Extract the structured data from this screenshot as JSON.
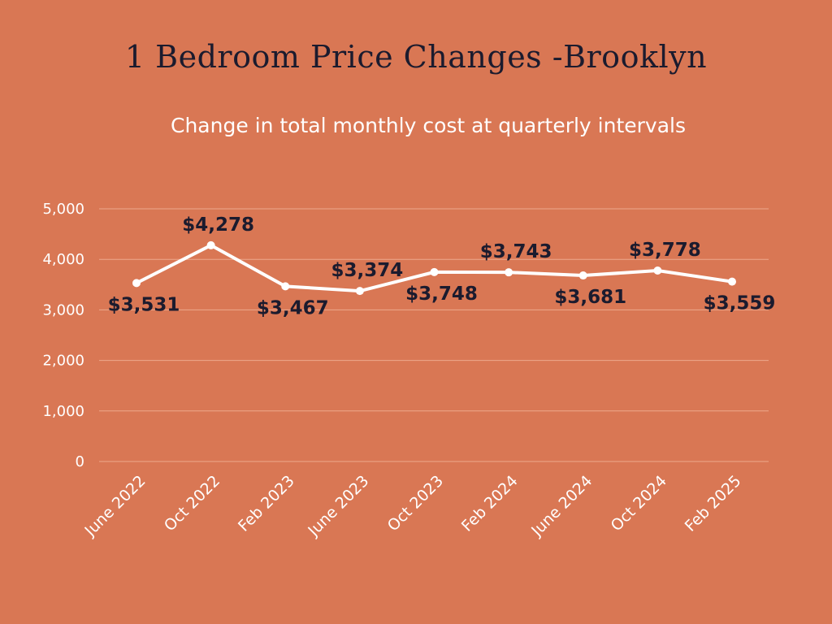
{
  "title": "1 Bedroom Price Changes -Brooklyn",
  "subtitle": "Change in total monthly cost at quarterly intervals",
  "colors": {
    "background": "#D97754",
    "line": "#FFFFFF",
    "grid": "#EDA88C",
    "label": "#1B1B2E",
    "tick": "#FFFFFF"
  },
  "chart_data": {
    "type": "line",
    "title": "1 Bedroom Price Changes -Brooklyn",
    "subtitle": "Change in total monthly cost at quarterly intervals",
    "xlabel": "",
    "ylabel": "",
    "categories": [
      "June 2022",
      "Oct 2022",
      "Feb 2023",
      "June 2023",
      "Oct 2023",
      "Feb 2024",
      "June 2024",
      "Oct 2024",
      "Feb 2025"
    ],
    "values": [
      3531,
      4278,
      3467,
      3374,
      3748,
      3743,
      3681,
      3778,
      3559
    ],
    "data_labels": [
      "$3,531",
      "$4,278",
      "$3,467",
      "$3,374",
      "$3,748",
      "$3,743",
      "$3,681",
      "$3,778",
      "$3,559"
    ],
    "label_position": [
      "below",
      "above",
      "below",
      "above",
      "below",
      "above",
      "below",
      "above",
      "below"
    ],
    "ylim": [
      0,
      5000
    ],
    "yticks": [
      0,
      1000,
      2000,
      3000,
      4000,
      5000
    ],
    "ytick_labels": [
      "0",
      "1,000",
      "2,000",
      "3,000",
      "4,000",
      "5,000"
    ],
    "grid": true,
    "legend": "none"
  }
}
